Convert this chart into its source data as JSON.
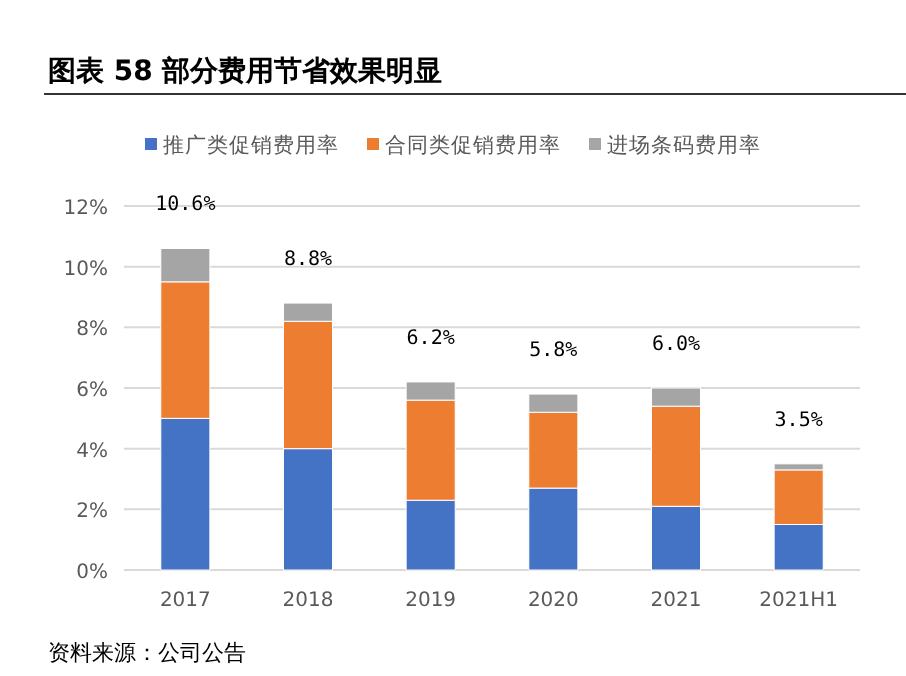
{
  "chart_data": {
    "type": "bar",
    "stacked": true,
    "title": "图表 58  部分费用节省效果明显",
    "categories": [
      "2017",
      "2018",
      "2019",
      "2020",
      "2021",
      "2021H1"
    ],
    "series": [
      {
        "name": "推广类促销费用率",
        "color": "#4472c4",
        "values": [
          5.0,
          4.0,
          2.3,
          2.7,
          2.1,
          1.5
        ]
      },
      {
        "name": "合同类促销费用率",
        "color": "#ed7d31",
        "values": [
          4.5,
          4.2,
          3.3,
          2.5,
          3.3,
          1.8
        ]
      },
      {
        "name": "进场条码费用率",
        "color": "#a5a5a5",
        "values": [
          1.1,
          0.6,
          0.6,
          0.6,
          0.6,
          0.2
        ]
      }
    ],
    "totals": [
      "10.6%",
      "8.8%",
      "6.2%",
      "5.8%",
      "6.0%",
      "3.5%"
    ],
    "ylim": [
      0,
      12
    ],
    "yticks": [
      {
        "value": 0,
        "label": "0%"
      },
      {
        "value": 2,
        "label": "2%"
      },
      {
        "value": 4,
        "label": "4%"
      },
      {
        "value": 6,
        "label": "6%"
      },
      {
        "value": 8,
        "label": "8%"
      },
      {
        "value": 10,
        "label": "10%"
      },
      {
        "value": 12,
        "label": "12%"
      }
    ],
    "grid": "y",
    "legend": "top",
    "annotations": [
      "资料来源：公司公告"
    ]
  }
}
